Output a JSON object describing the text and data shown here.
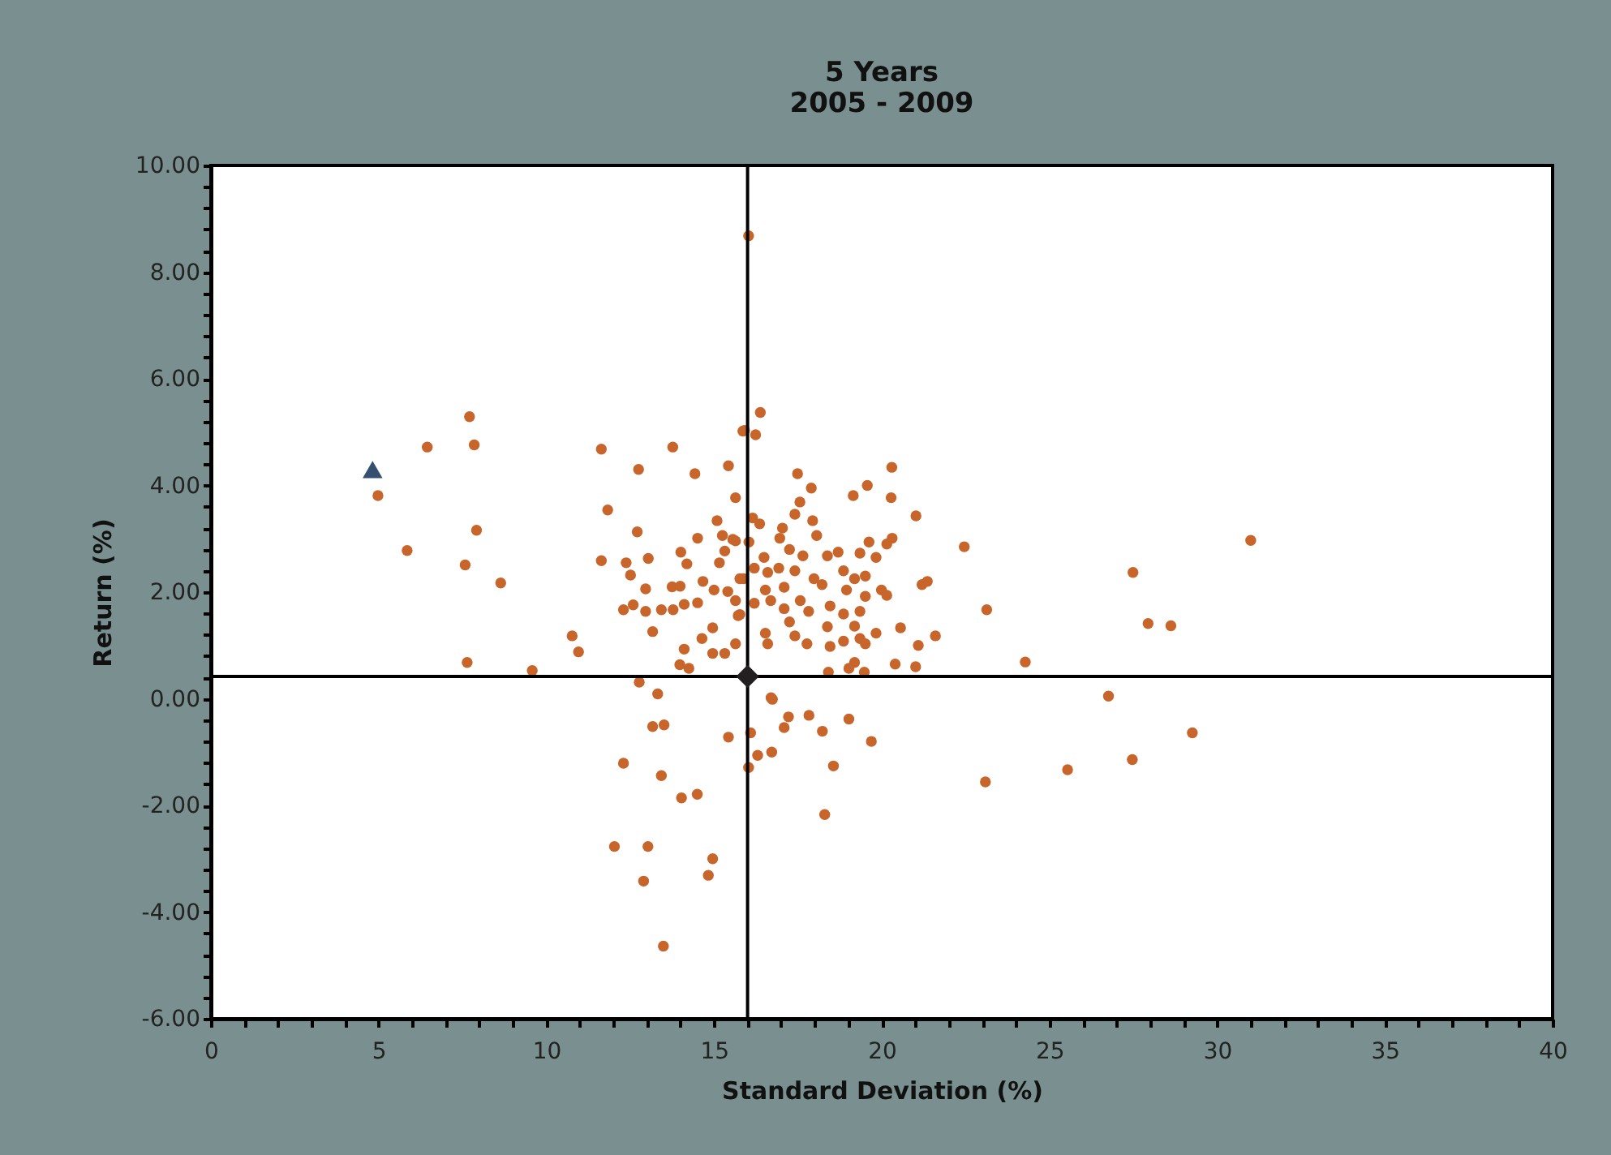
{
  "chart_data": {
    "type": "scatter",
    "title": "5 Years",
    "subtitle": "2005 - 2009",
    "xlabel": "Standard Deviation (%)",
    "ylabel": "Return (%)",
    "xlim": [
      0,
      40
    ],
    "ylim": [
      -6,
      10
    ],
    "xticks": [
      0,
      {
        "value": 1,
        "label": null
      },
      {
        "value": 2,
        "label": null
      },
      {
        "value": 3,
        "label": null
      },
      {
        "value": 4,
        "label": null
      },
      5,
      {
        "value": 6,
        "label": null
      },
      {
        "value": 7,
        "label": null
      },
      {
        "value": 8,
        "label": null
      },
      {
        "value": 9,
        "label": null
      },
      10,
      {
        "value": 11,
        "label": null
      },
      {
        "value": 12,
        "label": null
      },
      {
        "value": 13,
        "label": null
      },
      {
        "value": 14,
        "label": null
      },
      15,
      {
        "value": 16,
        "label": null
      },
      {
        "value": 17,
        "label": null
      },
      {
        "value": 18,
        "label": null
      },
      {
        "value": 19,
        "label": null
      },
      20,
      {
        "value": 21,
        "label": null
      },
      {
        "value": 22,
        "label": null
      },
      {
        "value": 23,
        "label": null
      },
      {
        "value": 24,
        "label": null
      },
      25,
      {
        "value": 26,
        "label": null
      },
      {
        "value": 27,
        "label": null
      },
      {
        "value": 28,
        "label": null
      },
      {
        "value": 29,
        "label": null
      },
      30,
      {
        "value": 31,
        "label": null
      },
      {
        "value": 32,
        "label": null
      },
      {
        "value": 33,
        "label": null
      },
      {
        "value": 34,
        "label": null
      },
      35,
      {
        "value": 36,
        "label": null
      },
      {
        "value": 37,
        "label": null
      },
      {
        "value": 38,
        "label": null
      },
      {
        "value": 39,
        "label": null
      },
      40
    ],
    "yticks": [
      {
        "value": -6,
        "label": "-6.00"
      },
      {
        "value": -5.6,
        "label": null
      },
      {
        "value": -5.2,
        "label": null
      },
      {
        "value": -4.8,
        "label": null
      },
      {
        "value": -4.4,
        "label": null
      },
      {
        "value": -4,
        "label": "-4.00"
      },
      {
        "value": -3.6,
        "label": null
      },
      {
        "value": -3.2,
        "label": null
      },
      {
        "value": -2.8,
        "label": null
      },
      {
        "value": -2.4,
        "label": null
      },
      {
        "value": -2,
        "label": "-2.00"
      },
      {
        "value": -1.6,
        "label": null
      },
      {
        "value": -1.2,
        "label": null
      },
      {
        "value": -0.8,
        "label": null
      },
      {
        "value": -0.4,
        "label": null
      },
      {
        "value": 0,
        "label": "0.00"
      },
      {
        "value": 0.4,
        "label": null
      },
      {
        "value": 0.8,
        "label": null
      },
      {
        "value": 1.2,
        "label": null
      },
      {
        "value": 1.6,
        "label": null
      },
      {
        "value": 2,
        "label": "2.00"
      },
      {
        "value": 2.4,
        "label": null
      },
      {
        "value": 2.8,
        "label": null
      },
      {
        "value": 3.2,
        "label": null
      },
      {
        "value": 3.6,
        "label": null
      },
      {
        "value": 4,
        "label": "4.00"
      },
      {
        "value": 4.4,
        "label": null
      },
      {
        "value": 4.8,
        "label": null
      },
      {
        "value": 5.2,
        "label": null
      },
      {
        "value": 5.6,
        "label": null
      },
      {
        "value": 6,
        "label": "6.00"
      },
      {
        "value": 6.4,
        "label": null
      },
      {
        "value": 6.8,
        "label": null
      },
      {
        "value": 7.2,
        "label": null
      },
      {
        "value": 7.6,
        "label": null
      },
      {
        "value": 8,
        "label": "8.00"
      },
      {
        "value": 8.4,
        "label": null
      },
      {
        "value": 8.8,
        "label": null
      },
      {
        "value": 9.2,
        "label": null
      },
      {
        "value": 9.6,
        "label": null
      },
      {
        "value": 10,
        "label": "10.00"
      }
    ],
    "grid": false,
    "ref_lines": [
      {
        "axis": "x",
        "value": 16.0,
        "color": "#000000"
      },
      {
        "axis": "y",
        "value": 0.42,
        "color": "#000000"
      }
    ],
    "series": [
      {
        "color": "#c8652b",
        "marker": "circle",
        "x": [
          4.98,
          5.85,
          6.45,
          7.71,
          7.85,
          7.92,
          7.58,
          8.64,
          7.64,
          9.58,
          10.77,
          10.96,
          11.64,
          13.77,
          12.75,
          14.43,
          15.43,
          15.86,
          11.83,
          12.71,
          15.64,
          11.64,
          12.38,
          13.04,
          12.51,
          12.96,
          12.3,
          12.59,
          12.96,
          13.17,
          13.43,
          13.78,
          14.11,
          14.51,
          13.75,
          13.99,
          14.67,
          15.0,
          15.41,
          14.01,
          14.51,
          14.19,
          15.16,
          15.09,
          15.25,
          15.64,
          15.32,
          14.96,
          14.64,
          15.64,
          14.11,
          14.96,
          15.32,
          13.98,
          14.25,
          15.77,
          15.77,
          12.77,
          13.32,
          16.03,
          16.38,
          15.91,
          16.24,
          17.49,
          17.9,
          19.15,
          19.57,
          20.3,
          20.28,
          21.02,
          17.56,
          17.41,
          16.15,
          16.36,
          17.04,
          17.94,
          18.06,
          16.96,
          19.62,
          20.31,
          20.15,
          22.46,
          27.49,
          15.56,
          16.04,
          16.49,
          17.25,
          17.65,
          18.38,
          18.7,
          19.35,
          19.83,
          15.88,
          16.2,
          16.6,
          16.93,
          17.41,
          17.98,
          18.86,
          19.19,
          19.51,
          16.53,
          17.09,
          18.22,
          18.95,
          19.51,
          19.99,
          21.2,
          21.36,
          15.64,
          16.2,
          16.69,
          17.09,
          17.57,
          17.82,
          18.46,
          18.86,
          19.35,
          20.15,
          23.13,
          15.72,
          17.25,
          18.38,
          19.19,
          20.56,
          16.53,
          17.41,
          19.35,
          19.83,
          21.6,
          16.6,
          17.77,
          18.46,
          18.86,
          19.51,
          21.09,
          19.19,
          19.02,
          20.4,
          21.01,
          18.41,
          19.48,
          24.28,
          16.7,
          26.76,
          27.94,
          28.62,
          31.0,
          29.26,
          27.47,
          25.54,
          23.09,
          13.17,
          13.51,
          12.3,
          13.43,
          14.03,
          14.5,
          12.03,
          13.03,
          12.9,
          14.96,
          14.83,
          13.49,
          15.43,
          16.09,
          16.03,
          16.3,
          16.72,
          16.74,
          17.22,
          17.09,
          17.83,
          18.23,
          19.02,
          19.69,
          18.56,
          18.3
        ],
        "values": [
          3.81,
          2.78,
          4.72,
          5.29,
          4.76,
          3.16,
          2.51,
          2.17,
          0.68,
          0.53,
          1.18,
          0.88,
          4.68,
          4.72,
          4.3,
          4.22,
          4.37,
          5.02,
          3.54,
          3.13,
          3.77,
          2.59,
          2.55,
          2.63,
          2.32,
          2.06,
          1.67,
          1.76,
          1.64,
          1.26,
          1.67,
          1.67,
          1.77,
          1.8,
          2.1,
          2.11,
          2.2,
          2.04,
          2.01,
          2.75,
          3.01,
          2.53,
          2.55,
          3.34,
          3.06,
          2.96,
          2.77,
          1.33,
          1.13,
          1.03,
          0.93,
          0.85,
          0.85,
          0.64,
          0.57,
          2.25,
          1.58,
          0.31,
          0.09,
          8.68,
          5.37,
          5.03,
          4.95,
          4.22,
          3.95,
          3.81,
          4.0,
          4.34,
          3.77,
          3.43,
          3.69,
          3.46,
          3.39,
          3.28,
          3.2,
          3.34,
          3.06,
          3.01,
          2.94,
          3.01,
          2.9,
          2.85,
          2.37,
          2.99,
          2.94,
          2.65,
          2.8,
          2.68,
          2.68,
          2.75,
          2.73,
          2.65,
          2.25,
          2.45,
          2.37,
          2.45,
          2.4,
          2.25,
          2.4,
          2.25,
          2.3,
          2.04,
          2.09,
          2.14,
          2.04,
          1.92,
          2.04,
          2.14,
          2.2,
          1.84,
          1.79,
          1.84,
          1.69,
          1.84,
          1.64,
          1.74,
          1.59,
          1.64,
          1.94,
          1.67,
          1.56,
          1.44,
          1.35,
          1.36,
          1.33,
          1.23,
          1.18,
          1.13,
          1.23,
          1.18,
          1.03,
          1.03,
          0.98,
          1.08,
          1.03,
          1.0,
          0.68,
          0.57,
          0.65,
          0.6,
          0.5,
          0.5,
          0.69,
          0.02,
          0.05,
          1.41,
          1.37,
          2.97,
          -0.64,
          -1.14,
          -1.33,
          -1.56,
          -0.52,
          -0.49,
          -1.21,
          -1.44,
          -1.86,
          -1.79,
          -2.77,
          -2.77,
          -3.42,
          -3.0,
          -3.31,
          -4.64,
          -0.72,
          -0.64,
          -1.29,
          -1.06,
          -1.0,
          -0.01,
          -0.34,
          -0.54,
          -0.31,
          -0.61,
          -0.38,
          -0.8,
          -1.26,
          -2.17
        ]
      },
      {
        "color": "#231f20",
        "marker": "diamond",
        "x": [
          16.0
        ],
        "values": [
          0.42
        ]
      },
      {
        "color": "#34506e",
        "marker": "triangle",
        "x": [
          4.82
        ],
        "values": [
          4.3
        ]
      }
    ]
  }
}
